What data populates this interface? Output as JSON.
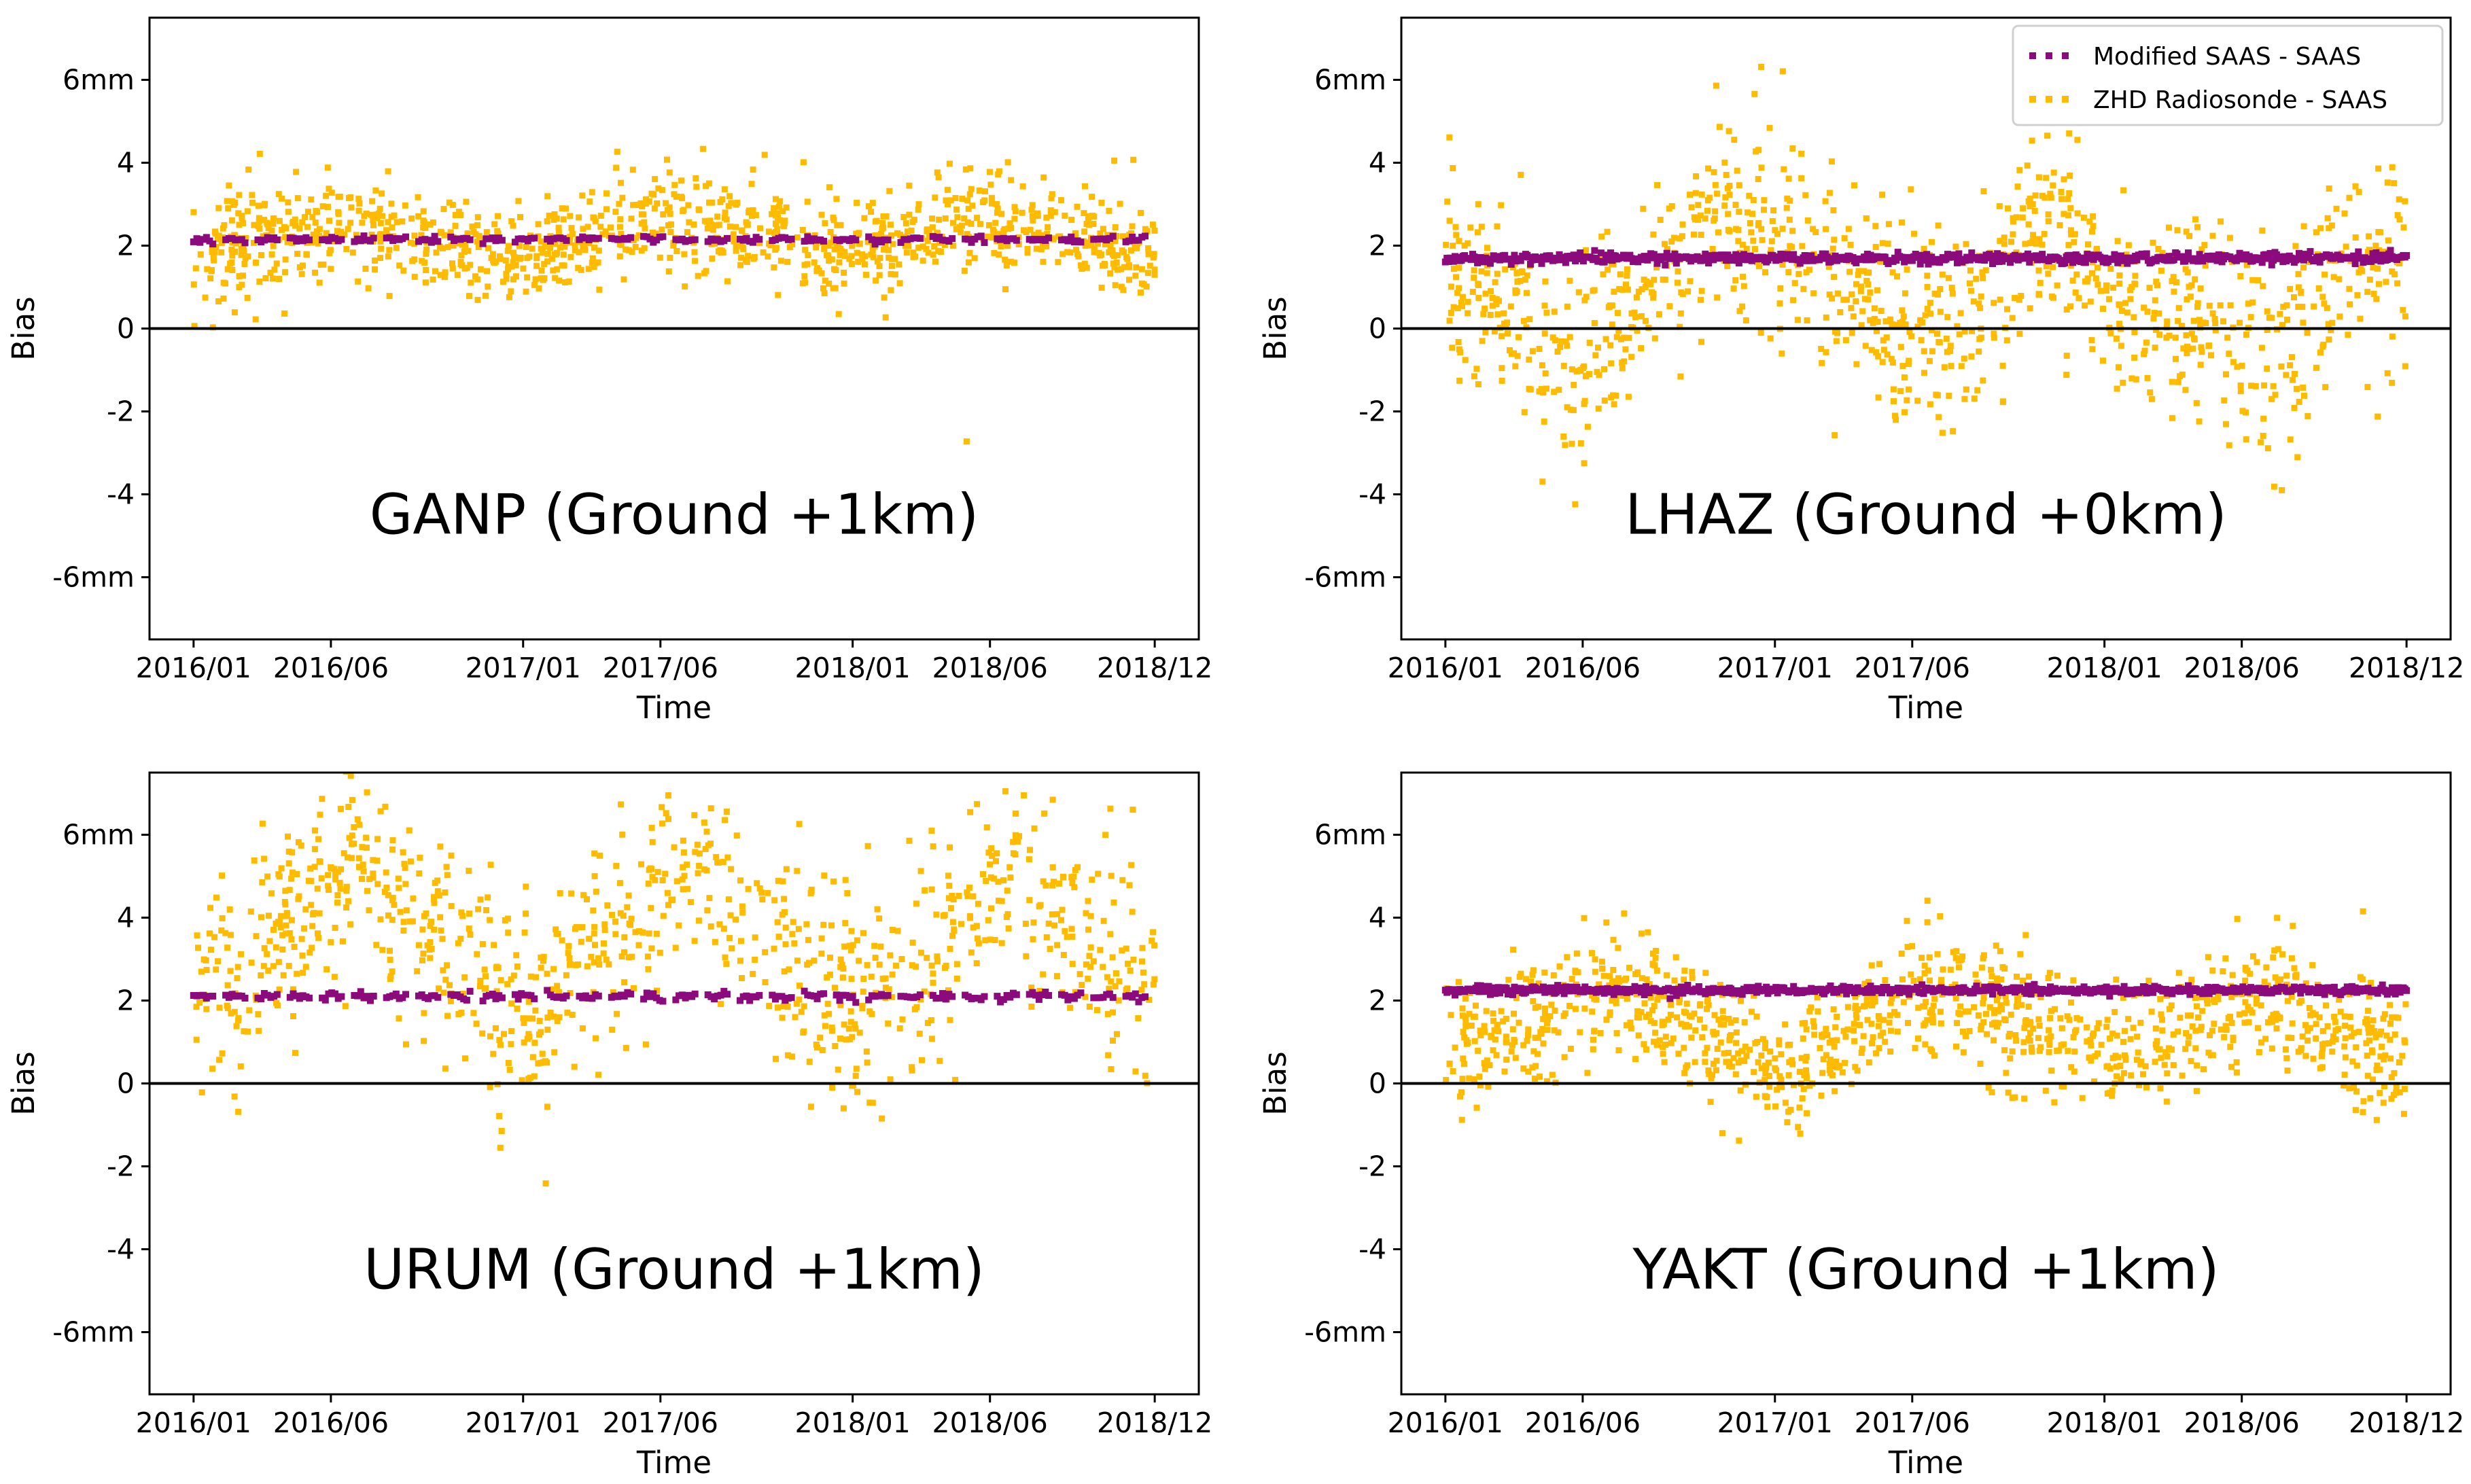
{
  "figure": {
    "legend": {
      "placement": "top-right of panel 2",
      "entries": [
        {
          "label": "Modified SAAS - SAAS",
          "color": "#8b0a7c",
          "marker": "dotted"
        },
        {
          "label": "ZHD Radiosonde - SAAS",
          "color": "#ffbb00",
          "marker": "dotted"
        }
      ]
    }
  },
  "chart_data": [
    {
      "type": "scatter",
      "title": "GANP (Ground +1km)",
      "xlabel": "Time",
      "ylabel": "Bias",
      "ylim": [
        -7.5,
        7.5
      ],
      "yticks": [
        -6,
        -4,
        -2,
        0,
        2,
        4,
        6
      ],
      "ytick_labels": [
        "-6mm",
        "-4",
        "-2",
        "0",
        "2",
        "4",
        "6mm"
      ],
      "xticks": [
        "2016/01",
        "2016/06",
        "2017/01",
        "2017/06",
        "2018/01",
        "2018/06",
        "2018/12"
      ],
      "grid": false,
      "reference_line": 0,
      "series": [
        {
          "name": "Modified SAAS - SAAS",
          "color": "#8b0a7c",
          "level": 2.15,
          "jitter": 0.04,
          "style": "dash"
        },
        {
          "name": "ZHD Radiosonde - SAAS",
          "color": "#ffbb00",
          "seed": 11,
          "profile_months": [
            0,
            5,
            12,
            17,
            24,
            29,
            35
          ],
          "profile_values": [
            1.6,
            2.6,
            1.7,
            2.8,
            1.8,
            2.7,
            1.7
          ],
          "spread": 0.6,
          "points": 1100
        }
      ]
    },
    {
      "type": "scatter",
      "title": "LHAZ (Ground +0km)",
      "xlabel": "Time",
      "ylabel": "Bias",
      "ylim": [
        -7.5,
        7.5
      ],
      "yticks": [
        -6,
        -4,
        -2,
        0,
        2,
        4,
        6
      ],
      "ytick_labels": [
        "-6mm",
        "-4",
        "-2",
        "0",
        "2",
        "4",
        "6mm"
      ],
      "xticks": [
        "2016/01",
        "2016/06",
        "2017/01",
        "2017/06",
        "2018/01",
        "2018/06",
        "2018/12"
      ],
      "grid": false,
      "reference_line": 0,
      "series": [
        {
          "name": "Modified SAAS - SAAS",
          "color": "#8b0a7c",
          "level": 1.7,
          "jitter": 0.06,
          "style": "solid"
        },
        {
          "name": "ZHD Radiosonde - SAAS",
          "color": "#ffbb00",
          "seed": 23,
          "profile_months": [
            0,
            5,
            10,
            12,
            18,
            22,
            24,
            30,
            34,
            35
          ],
          "profile_values": [
            1.6,
            -0.8,
            3.0,
            2.4,
            -0.6,
            2.6,
            1.0,
            -0.6,
            2.0,
            1.2
          ],
          "spread": 1.2,
          "points": 1050
        }
      ]
    },
    {
      "type": "scatter",
      "title": "URUM (Ground +1km)",
      "xlabel": "Time",
      "ylabel": "Bias",
      "ylim": [
        -7.5,
        7.5
      ],
      "yticks": [
        -6,
        -4,
        -2,
        0,
        2,
        4,
        6
      ],
      "ytick_labels": [
        "-6mm",
        "-4",
        "-2",
        "0",
        "2",
        "4",
        "6mm"
      ],
      "xticks": [
        "2016/01",
        "2016/06",
        "2017/01",
        "2017/06",
        "2018/01",
        "2018/06",
        "2018/12"
      ],
      "grid": false,
      "reference_line": 0,
      "series": [
        {
          "name": "Modified SAAS - SAAS",
          "color": "#8b0a7c",
          "level": 2.1,
          "jitter": 0.05,
          "style": "dash"
        },
        {
          "name": "ZHD Radiosonde - SAAS",
          "color": "#ffbb00",
          "seed": 37,
          "profile_months": [
            0,
            6,
            12,
            18,
            24,
            30,
            35
          ],
          "profile_values": [
            1.8,
            5.4,
            1.6,
            5.0,
            1.8,
            5.2,
            2.0
          ],
          "spread": 1.3,
          "points": 950
        }
      ]
    },
    {
      "type": "scatter",
      "title": "YAKT (Ground +1km)",
      "xlabel": "Time",
      "ylabel": "Bias",
      "ylim": [
        -7.5,
        7.5
      ],
      "yticks": [
        -6,
        -4,
        -2,
        0,
        2,
        4,
        6
      ],
      "ytick_labels": [
        "-6mm",
        "-4",
        "-2",
        "0",
        "2",
        "4",
        "6mm"
      ],
      "xticks": [
        "2016/01",
        "2016/06",
        "2017/01",
        "2017/06",
        "2018/01",
        "2018/06",
        "2018/12"
      ],
      "grid": false,
      "reference_line": 0,
      "series": [
        {
          "name": "Modified SAAS - SAAS",
          "color": "#8b0a7c",
          "level": 2.25,
          "jitter": 0.05,
          "style": "solid"
        },
        {
          "name": "ZHD Radiosonde - SAAS",
          "color": "#ffbb00",
          "seed": 53,
          "profile_months": [
            0,
            6,
            12,
            18,
            24,
            30,
            35
          ],
          "profile_values": [
            0.7,
            2.4,
            0.4,
            2.2,
            0.6,
            2.2,
            0.5
          ],
          "spread": 0.75,
          "points": 1100
        }
      ]
    }
  ]
}
